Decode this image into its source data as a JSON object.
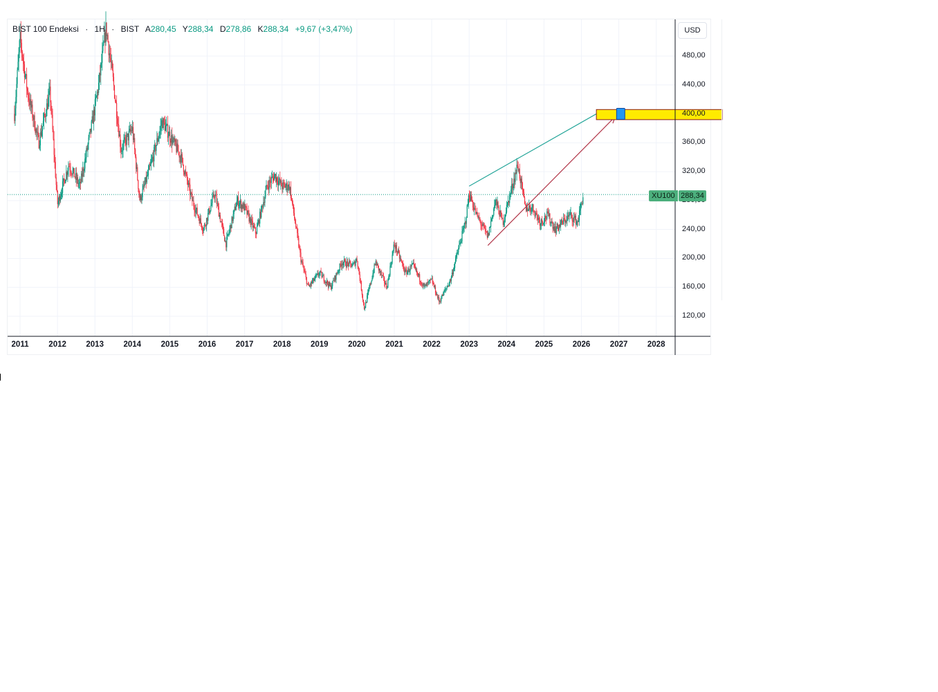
{
  "legend": {
    "symbol_name": "BIST 100 Endeksi",
    "interval": "1H",
    "exchange": "BIST",
    "open_label": "A",
    "open_value": "280,45",
    "high_label": "Y",
    "high_value": "288,34",
    "low_label": "D",
    "low_value": "278,86",
    "close_label": "K",
    "close_value": "288,34",
    "change": "+9,67 (+3,47%)"
  },
  "currency_label": "USD",
  "price_tag": {
    "symbol": "XU100",
    "value": "288,34",
    "color": "#4caf7d"
  },
  "colors": {
    "up": "#089981",
    "down": "#f23645",
    "grid": "#f0f3fa",
    "target_zone": "#ffeb00",
    "target_zone_border": "#8b1a1a",
    "marker": "#2196f3",
    "channel_top_line": "#26a69a",
    "arrow_line": "#b2374a"
  },
  "chart_data": {
    "type": "candlestick",
    "title": "BIST 100 Endeksi · 1H · BIST",
    "y_ticks": [
      "120,00",
      "160,00",
      "200,00",
      "240,00",
      "280,00",
      "320,00",
      "360,00",
      "400,00",
      "440,00",
      "480,00"
    ],
    "x_ticks": [
      "2011",
      "2012",
      "2013",
      "2014",
      "2015",
      "2016",
      "2017",
      "2018",
      "2019",
      "2020",
      "2021",
      "2022",
      "2023",
      "2024",
      "2025",
      "2026",
      "2027",
      "2028"
    ],
    "ylim": [
      95,
      525
    ],
    "xlim": [
      2010.8,
      2029.0
    ],
    "close_series": {
      "x": [
        2010.85,
        2011.0,
        2011.2,
        2011.5,
        2011.8,
        2012.0,
        2012.3,
        2012.6,
        2012.9,
        2013.1,
        2013.3,
        2013.5,
        2013.7,
        2014.0,
        2014.2,
        2014.5,
        2014.8,
        2015.0,
        2015.3,
        2015.6,
        2015.9,
        2016.2,
        2016.5,
        2016.8,
        2017.0,
        2017.3,
        2017.6,
        2017.8,
        2018.0,
        2018.2,
        2018.5,
        2018.7,
        2019.0,
        2019.3,
        2019.6,
        2019.9,
        2020.0,
        2020.2,
        2020.5,
        2020.8,
        2021.0,
        2021.3,
        2021.5,
        2021.8,
        2022.0,
        2022.2,
        2022.5,
        2022.7,
        2022.9,
        2023.0,
        2023.2,
        2023.5,
        2023.7,
        2023.9,
        2024.1,
        2024.3,
        2024.5,
        2024.7,
        2024.9,
        2025.1,
        2025.3,
        2025.5,
        2025.7,
        2025.9,
        2026.05
      ],
      "y": [
        400,
        505,
        430,
        360,
        430,
        275,
        330,
        300,
        380,
        440,
        520,
        440,
        350,
        380,
        280,
        330,
        390,
        370,
        340,
        280,
        240,
        290,
        220,
        280,
        270,
        235,
        300,
        315,
        300,
        300,
        200,
        160,
        180,
        160,
        195,
        190,
        200,
        130,
        195,
        160,
        220,
        180,
        190,
        160,
        170,
        140,
        170,
        210,
        250,
        290,
        260,
        230,
        280,
        250,
        290,
        330,
        270,
        270,
        250,
        260,
        240,
        250,
        260,
        250,
        288
      ]
    },
    "annotations": {
      "target_zone": {
        "y_low": 392,
        "y_high": 406,
        "x_start": 2026.4,
        "x_end": 2029.0
      },
      "marker": {
        "x": 2027.05,
        "y": 400
      },
      "channel_top_line": {
        "x1": 2023.0,
        "y1": 300,
        "x2": 2026.4,
        "y2": 400
      },
      "arrow_line": {
        "x1": 2023.5,
        "y1": 218,
        "x2": 2026.9,
        "y2": 396
      },
      "last_price_line": 288.34
    }
  }
}
